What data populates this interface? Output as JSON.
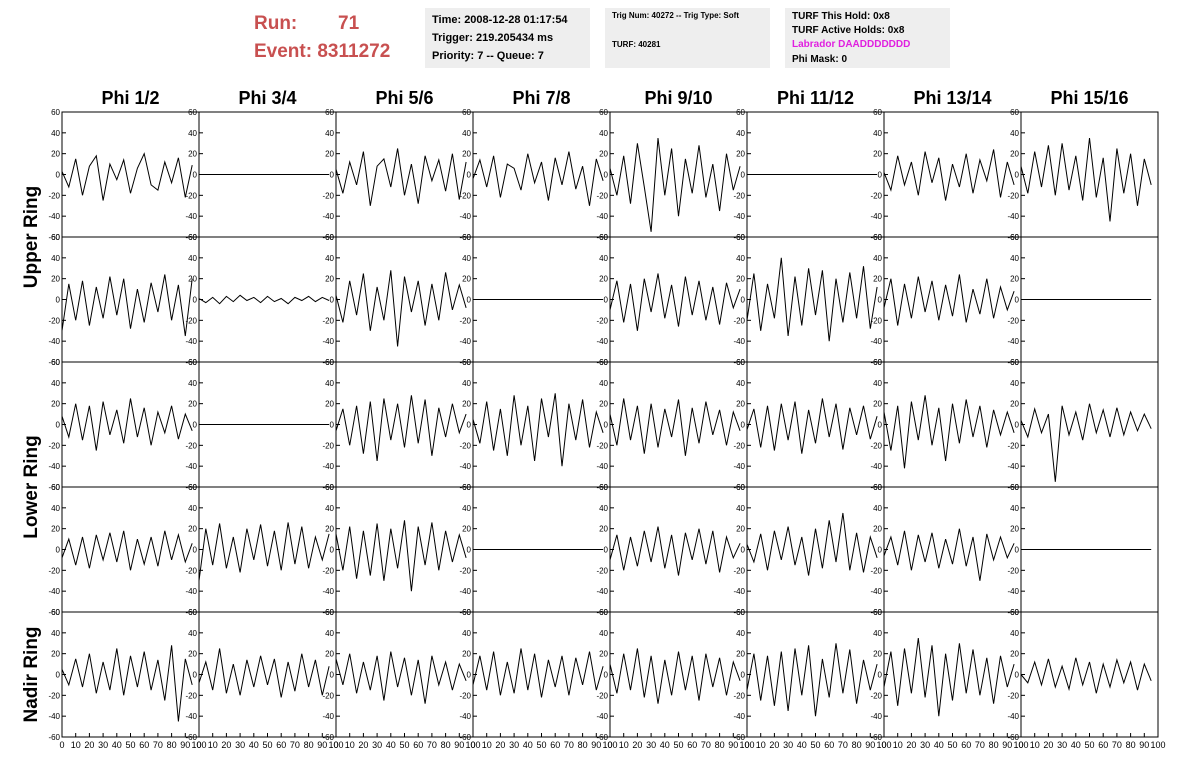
{
  "header": {
    "run_label": "Run:",
    "run": "71",
    "event": "Event: 8311272",
    "box1": [
      "Time: 2008-12-28 01:17:54",
      "Trigger: 219.205434 ms",
      "Priority: 7 -- Queue: 7"
    ],
    "box2": [
      "Trig Num: 40272 -- Trig Type: Soft",
      "TURF: 40281"
    ],
    "box3": [
      "TURF This Hold: 0x8",
      "TURF Active Holds: 0x8",
      "Labrador DAADDDDDDD",
      "Phi Mask: 0"
    ]
  },
  "chart_data": {
    "type": "line",
    "color": "#000000",
    "columns": [
      "Phi 1/2",
      "Phi 3/4",
      "Phi 5/6",
      "Phi 7/8",
      "Phi 9/10",
      "Phi 11/12",
      "Phi 13/14",
      "Phi 15/16"
    ],
    "ring_labels": [
      "Upper Ring",
      "Lower Ring",
      "Nadir Ring"
    ],
    "xlim": [
      0,
      100
    ],
    "xticks": [
      0,
      10,
      20,
      30,
      40,
      50,
      60,
      70,
      80,
      90,
      100
    ],
    "ylim": [
      -60,
      60
    ],
    "yticks": [
      -60,
      -40,
      -20,
      0,
      20,
      40,
      60
    ],
    "x": [
      0,
      5,
      10,
      15,
      20,
      25,
      30,
      35,
      40,
      45,
      50,
      55,
      60,
      65,
      70,
      75,
      80,
      85,
      90,
      95
    ],
    "panels": [
      [
        [
          3,
          -12,
          15,
          -20,
          8,
          18,
          -25,
          10,
          -5,
          14,
          -18,
          6,
          20,
          -10,
          -15,
          12,
          -8,
          16,
          -22,
          9
        ],
        [
          0,
          0,
          0,
          0,
          0,
          0,
          0,
          0,
          0,
          0,
          0,
          0,
          0,
          0,
          0,
          0,
          0,
          0,
          0,
          0
        ],
        [
          5,
          -18,
          12,
          -10,
          22,
          -30,
          8,
          15,
          -12,
          25,
          -20,
          10,
          -28,
          18,
          -6,
          14,
          -16,
          20,
          -24,
          12
        ],
        [
          -4,
          14,
          -12,
          18,
          -22,
          10,
          6,
          -15,
          20,
          -8,
          12,
          -25,
          16,
          -10,
          22,
          -14,
          8,
          -30,
          15,
          -6
        ],
        [
          6,
          -20,
          18,
          -28,
          30,
          -12,
          -55,
          35,
          -20,
          25,
          -40,
          15,
          -18,
          28,
          -22,
          10,
          -35,
          20,
          -15,
          8
        ],
        [
          0,
          0,
          0,
          0,
          0,
          0,
          0,
          0,
          0,
          0,
          0,
          0,
          0,
          0,
          0,
          0,
          0,
          0,
          0,
          0
        ],
        [
          2,
          -15,
          18,
          -10,
          12,
          -20,
          22,
          -8,
          16,
          -25,
          10,
          -12,
          20,
          -18,
          14,
          -6,
          24,
          -22,
          12,
          -10
        ],
        [
          8,
          -18,
          22,
          -12,
          28,
          -20,
          30,
          -15,
          18,
          -25,
          35,
          -22,
          16,
          -45,
          25,
          -18,
          20,
          -30,
          15,
          -10
        ]
      ],
      [
        [
          -30,
          15,
          -20,
          18,
          -25,
          12,
          -18,
          22,
          -15,
          20,
          -28,
          10,
          -22,
          16,
          -12,
          24,
          -20,
          14,
          -35,
          20
        ],
        [
          1,
          -3,
          2,
          -4,
          3,
          -2,
          4,
          -1,
          2,
          -3,
          3,
          -2,
          1,
          -4,
          2,
          -1,
          3,
          -2,
          2,
          -1
        ],
        [
          4,
          -22,
          18,
          -15,
          25,
          -30,
          12,
          -20,
          28,
          -45,
          22,
          -12,
          18,
          -25,
          15,
          -20,
          26,
          -10,
          14,
          -8
        ],
        [
          0,
          0,
          0,
          0,
          0,
          0,
          0,
          0,
          0,
          0,
          0,
          0,
          0,
          0,
          0,
          0,
          0,
          0,
          0,
          0
        ],
        [
          -10,
          18,
          -22,
          15,
          -30,
          20,
          -12,
          25,
          -18,
          14,
          -26,
          22,
          -15,
          18,
          -20,
          12,
          -24,
          16,
          -8,
          10
        ],
        [
          -20,
          25,
          -30,
          15,
          -18,
          40,
          -35,
          22,
          -25,
          30,
          -15,
          28,
          -40,
          20,
          -22,
          26,
          -18,
          32,
          -28,
          12
        ],
        [
          -8,
          20,
          -25,
          15,
          -18,
          22,
          -12,
          18,
          -20,
          14,
          -16,
          24,
          -22,
          10,
          -14,
          20,
          -18,
          12,
          -10,
          8
        ],
        [
          0,
          0,
          0,
          0,
          0,
          0,
          0,
          0,
          0,
          0,
          0,
          0,
          0,
          0,
          0,
          0,
          0,
          0,
          0,
          0
        ]
      ],
      [
        [
          8,
          -12,
          20,
          -15,
          18,
          -25,
          22,
          -10,
          14,
          -18,
          25,
          -12,
          16,
          -20,
          12,
          -8,
          18,
          -14,
          10,
          -6
        ],
        [
          0,
          0,
          0,
          0,
          0,
          0,
          0,
          0,
          0,
          0,
          0,
          0,
          0,
          0,
          0,
          0,
          0,
          0,
          0,
          0
        ],
        [
          -6,
          15,
          -20,
          18,
          -28,
          22,
          -35,
          25,
          -15,
          20,
          -22,
          28,
          -18,
          24,
          -30,
          16,
          -12,
          20,
          -8,
          10
        ],
        [
          5,
          -18,
          22,
          -25,
          15,
          -30,
          28,
          -20,
          18,
          -35,
          25,
          -12,
          30,
          -40,
          20,
          -15,
          24,
          -22,
          12,
          -8
        ],
        [
          10,
          -20,
          25,
          -15,
          18,
          -28,
          20,
          -22,
          15,
          -12,
          24,
          -30,
          16,
          -18,
          22,
          -10,
          14,
          -20,
          12,
          -6
        ],
        [
          -5,
          15,
          -22,
          18,
          -25,
          20,
          -15,
          22,
          -28,
          14,
          -18,
          25,
          -12,
          20,
          -24,
          16,
          -10,
          18,
          -14,
          8
        ],
        [
          12,
          -25,
          18,
          -42,
          22,
          -15,
          28,
          -20,
          16,
          -35,
          20,
          -18,
          24,
          -12,
          18,
          -22,
          14,
          -10,
          12,
          -8
        ],
        [
          4,
          -12,
          15,
          -8,
          10,
          -55,
          18,
          -10,
          12,
          -15,
          20,
          -8,
          14,
          -12,
          16,
          -10,
          12,
          -6,
          10,
          -4
        ]
      ],
      [
        [
          -8,
          10,
          -15,
          12,
          -18,
          14,
          -10,
          16,
          -12,
          18,
          -20,
          10,
          -14,
          12,
          -16,
          18,
          -10,
          14,
          -12,
          6
        ],
        [
          -30,
          20,
          -15,
          25,
          -18,
          12,
          -22,
          20,
          -10,
          24,
          -16,
          18,
          -20,
          26,
          -14,
          22,
          -18,
          12,
          -10,
          15
        ],
        [
          15,
          -20,
          22,
          -28,
          18,
          -25,
          25,
          -30,
          20,
          -18,
          28,
          -40,
          22,
          -15,
          26,
          -20,
          18,
          -12,
          14,
          -8
        ],
        [
          0,
          0,
          0,
          0,
          0,
          0,
          0,
          0,
          0,
          0,
          0,
          0,
          0,
          0,
          0,
          0,
          0,
          0,
          0,
          0
        ],
        [
          -10,
          14,
          -20,
          12,
          -16,
          18,
          -12,
          22,
          -18,
          14,
          -25,
          16,
          -10,
          20,
          -14,
          18,
          -22,
          12,
          -8,
          6
        ],
        [
          5,
          -12,
          15,
          -20,
          18,
          -10,
          22,
          -15,
          12,
          -25,
          20,
          -18,
          28,
          -12,
          35,
          -20,
          16,
          -22,
          12,
          -8
        ],
        [
          -6,
          12,
          -15,
          18,
          -20,
          14,
          -12,
          16,
          -18,
          10,
          -14,
          20,
          -16,
          12,
          -30,
          15,
          -10,
          12,
          -8,
          6
        ],
        [
          0,
          0,
          0,
          0,
          0,
          0,
          0,
          0,
          0,
          0,
          0,
          0,
          0,
          0,
          0,
          0,
          0,
          0,
          0,
          0
        ]
      ],
      [
        [
          5,
          -10,
          15,
          -12,
          20,
          -18,
          12,
          -15,
          25,
          -20,
          18,
          -12,
          22,
          -15,
          14,
          -25,
          28,
          -45,
          15,
          -10
        ],
        [
          -8,
          12,
          -15,
          25,
          -18,
          10,
          -20,
          14,
          -12,
          18,
          -10,
          15,
          -22,
          12,
          -16,
          20,
          -12,
          14,
          -20,
          8
        ],
        [
          15,
          -10,
          20,
          -18,
          12,
          -15,
          18,
          -25,
          22,
          -12,
          16,
          -20,
          14,
          -28,
          18,
          -10,
          12,
          -15,
          10,
          -6
        ],
        [
          -10,
          18,
          -15,
          22,
          -20,
          12,
          -18,
          25,
          -15,
          20,
          -22,
          14,
          -12,
          18,
          -20,
          16,
          -10,
          22,
          -15,
          8
        ],
        [
          10,
          -18,
          20,
          -15,
          25,
          -22,
          18,
          -28,
          14,
          -20,
          22,
          -15,
          18,
          -25,
          20,
          -12,
          16,
          -20,
          12,
          -6
        ],
        [
          -15,
          20,
          -25,
          18,
          -30,
          22,
          -35,
          25,
          -20,
          28,
          -40,
          15,
          -22,
          30,
          -18,
          24,
          -28,
          14,
          -15,
          10
        ],
        [
          -12,
          22,
          -30,
          25,
          -18,
          35,
          -22,
          28,
          -40,
          20,
          -25,
          30,
          -18,
          24,
          -20,
          16,
          -28,
          18,
          -12,
          10
        ],
        [
          0,
          -8,
          12,
          -10,
          15,
          -12,
          8,
          -14,
          16,
          -10,
          12,
          -18,
          10,
          -12,
          14,
          -8,
          12,
          -15,
          10,
          -6
        ]
      ]
    ]
  }
}
